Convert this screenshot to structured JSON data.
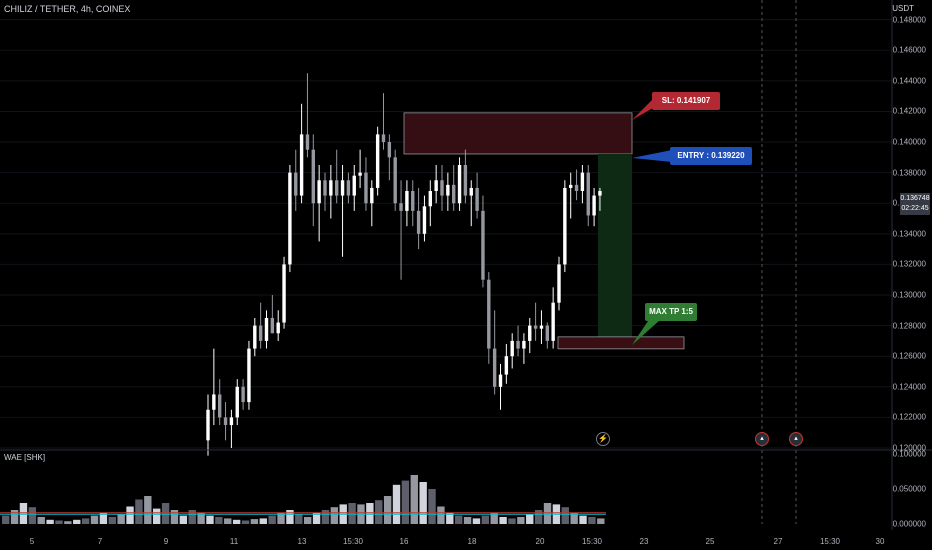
{
  "header": {
    "symbol_title": "CHILIZ / TETHER, 4h, COINEX",
    "currency": "USDT"
  },
  "indicator": {
    "label": "WAE [SHK]"
  },
  "price_axis": {
    "ticks": [
      "0.148000",
      "0.146000",
      "0.144000",
      "0.142000",
      "0.140000",
      "0.138000",
      "0.136000",
      "0.134000",
      "0.132000",
      "0.130000",
      "0.128000",
      "0.126000",
      "0.124000",
      "0.122000",
      "0.120000"
    ],
    "current_price": "0.136748",
    "countdown": "02:22:45"
  },
  "wae_axis": {
    "ticks": [
      "0.100000",
      "0.050000",
      "0.000000"
    ]
  },
  "time_axis": {
    "ticks": [
      "5",
      "7",
      "9",
      "11",
      "13",
      "15:30",
      "16",
      "18",
      "20",
      "15:30",
      "23",
      "25",
      "27",
      "15:30",
      "30"
    ]
  },
  "annotations": {
    "sl_label": "SL:  0.141907",
    "entry_label": "ENTRY : 0.139220",
    "tp_label": "MAX TP 1:5"
  },
  "colors": {
    "background": "#000000",
    "bull": "#ffffff",
    "bear": "#9598a1",
    "sl_zone": "#3a0f14",
    "tp_zone": "#0f2a14"
  },
  "chart_data": {
    "type": "candlestick",
    "title": "CHILIZ / TETHER, 4h, COINEX",
    "y_unit": "USDT",
    "ylim": [
      0.12,
      0.1485
    ],
    "current_price": 0.136748,
    "trade_setup": {
      "stop_loss": 0.141907,
      "entry": 0.13922,
      "take_profit": 0.1272,
      "risk_reward": "1:5"
    },
    "candles": [
      [
        0.1205,
        0.1235,
        0.1195,
        0.1225
      ],
      [
        0.1225,
        0.1265,
        0.1215,
        0.1235
      ],
      [
        0.1235,
        0.1245,
        0.1215,
        0.122
      ],
      [
        0.122,
        0.123,
        0.1205,
        0.1215
      ],
      [
        0.1215,
        0.1225,
        0.12,
        0.122
      ],
      [
        0.122,
        0.1245,
        0.1215,
        0.124
      ],
      [
        0.124,
        0.1245,
        0.1225,
        0.123
      ],
      [
        0.123,
        0.127,
        0.1225,
        0.1265
      ],
      [
        0.1265,
        0.1285,
        0.126,
        0.128
      ],
      [
        0.128,
        0.1295,
        0.1265,
        0.127
      ],
      [
        0.127,
        0.129,
        0.1265,
        0.1285
      ],
      [
        0.1285,
        0.13,
        0.1275,
        0.1275
      ],
      [
        0.1275,
        0.129,
        0.127,
        0.1282
      ],
      [
        0.1282,
        0.1325,
        0.1278,
        0.132
      ],
      [
        0.132,
        0.1385,
        0.1315,
        0.138
      ],
      [
        0.138,
        0.1395,
        0.1355,
        0.1365
      ],
      [
        0.1365,
        0.1425,
        0.136,
        0.1405
      ],
      [
        0.1405,
        0.1445,
        0.139,
        0.1395
      ],
      [
        0.1395,
        0.1405,
        0.1345,
        0.136
      ],
      [
        0.136,
        0.1385,
        0.1335,
        0.1375
      ],
      [
        0.1375,
        0.138,
        0.1355,
        0.1365
      ],
      [
        0.1365,
        0.1385,
        0.135,
        0.1375
      ],
      [
        0.1375,
        0.1395,
        0.136,
        0.1365
      ],
      [
        0.1365,
        0.1385,
        0.1325,
        0.1375
      ],
      [
        0.1375,
        0.138,
        0.136,
        0.1365
      ],
      [
        0.1365,
        0.1385,
        0.1355,
        0.1378
      ],
      [
        0.1378,
        0.1395,
        0.137,
        0.138
      ],
      [
        0.138,
        0.139,
        0.1355,
        0.136
      ],
      [
        0.136,
        0.1375,
        0.1345,
        0.137
      ],
      [
        0.137,
        0.141,
        0.1365,
        0.1405
      ],
      [
        0.1405,
        0.1432,
        0.1395,
        0.14
      ],
      [
        0.14,
        0.1405,
        0.1375,
        0.139
      ],
      [
        0.139,
        0.1395,
        0.1355,
        0.136
      ],
      [
        0.136,
        0.1375,
        0.131,
        0.1355
      ],
      [
        0.1355,
        0.1375,
        0.1345,
        0.1368
      ],
      [
        0.1368,
        0.1375,
        0.1345,
        0.1355
      ],
      [
        0.1355,
        0.137,
        0.133,
        0.134
      ],
      [
        0.134,
        0.1365,
        0.1335,
        0.1358
      ],
      [
        0.1358,
        0.1375,
        0.1345,
        0.1368
      ],
      [
        0.1368,
        0.1385,
        0.136,
        0.1375
      ],
      [
        0.1375,
        0.1385,
        0.1355,
        0.1365
      ],
      [
        0.1365,
        0.138,
        0.1355,
        0.1372
      ],
      [
        0.1372,
        0.1385,
        0.1355,
        0.136
      ],
      [
        0.136,
        0.139,
        0.1355,
        0.1385
      ],
      [
        0.1385,
        0.1395,
        0.136,
        0.1365
      ],
      [
        0.1365,
        0.1375,
        0.1345,
        0.137
      ],
      [
        0.137,
        0.138,
        0.135,
        0.1355
      ],
      [
        0.1355,
        0.1365,
        0.1305,
        0.131
      ],
      [
        0.131,
        0.1315,
        0.1255,
        0.1265
      ],
      [
        0.1265,
        0.129,
        0.1235,
        0.124
      ],
      [
        0.124,
        0.1255,
        0.1225,
        0.1248
      ],
      [
        0.1248,
        0.1268,
        0.1242,
        0.126
      ],
      [
        0.126,
        0.1275,
        0.1252,
        0.127
      ],
      [
        0.127,
        0.128,
        0.126,
        0.1265
      ],
      [
        0.1265,
        0.1275,
        0.1255,
        0.127
      ],
      [
        0.127,
        0.1285,
        0.1262,
        0.128
      ],
      [
        0.128,
        0.1295,
        0.127,
        0.1278
      ],
      [
        0.1278,
        0.129,
        0.1268,
        0.128
      ],
      [
        0.128,
        0.1282,
        0.1265,
        0.127
      ],
      [
        0.127,
        0.1305,
        0.1265,
        0.1295
      ],
      [
        0.1295,
        0.1325,
        0.129,
        0.132
      ],
      [
        0.132,
        0.1375,
        0.1315,
        0.137
      ],
      [
        0.137,
        0.138,
        0.135,
        0.1372
      ],
      [
        0.1372,
        0.1382,
        0.1362,
        0.1368
      ],
      [
        0.1368,
        0.1385,
        0.136,
        0.138
      ],
      [
        0.138,
        0.1385,
        0.1345,
        0.1352
      ],
      [
        0.1352,
        0.137,
        0.1345,
        0.1365
      ],
      [
        0.1365,
        0.137,
        0.1355,
        0.1368
      ]
    ],
    "wae_histogram": [
      0.012,
      0.02,
      0.03,
      0.024,
      0.01,
      0.006,
      0.005,
      0.004,
      0.006,
      0.008,
      0.012,
      0.016,
      0.01,
      0.014,
      0.025,
      0.035,
      0.04,
      0.022,
      0.03,
      0.02,
      0.012,
      0.02,
      0.016,
      0.012,
      0.01,
      0.008,
      0.006,
      0.005,
      0.007,
      0.008,
      0.012,
      0.016,
      0.02,
      0.014,
      0.01,
      0.016,
      0.02,
      0.024,
      0.028,
      0.03,
      0.028,
      0.03,
      0.034,
      0.04,
      0.056,
      0.062,
      0.07,
      0.06,
      0.05,
      0.025,
      0.016,
      0.012,
      0.01,
      0.008,
      0.012,
      0.016,
      0.01,
      0.008,
      0.01,
      0.014,
      0.02,
      0.03,
      0.028,
      0.024,
      0.016,
      0.012,
      0.01,
      0.008
    ]
  }
}
